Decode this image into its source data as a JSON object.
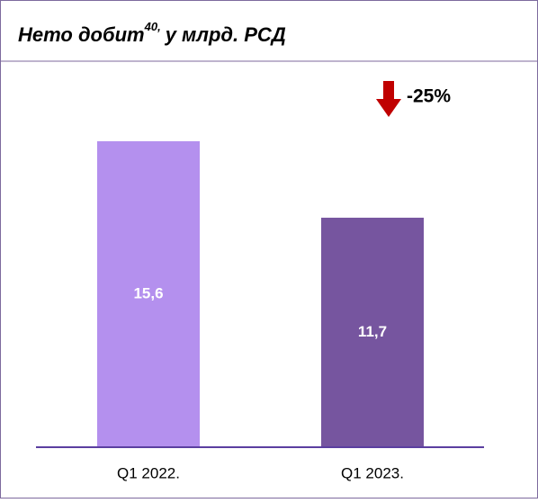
{
  "chart_data": {
    "type": "bar",
    "title": "Нето добит",
    "title_superscript": "40,",
    "title_suffix": "у млрд. РСД",
    "categories": [
      "Q1 2022.",
      "Q1 2023."
    ],
    "values": [
      15.6,
      11.7
    ],
    "value_labels": [
      "15,6",
      "11,7"
    ],
    "colors": [
      "#b490ee",
      "#76559f"
    ],
    "annotation": "-25%"
  }
}
